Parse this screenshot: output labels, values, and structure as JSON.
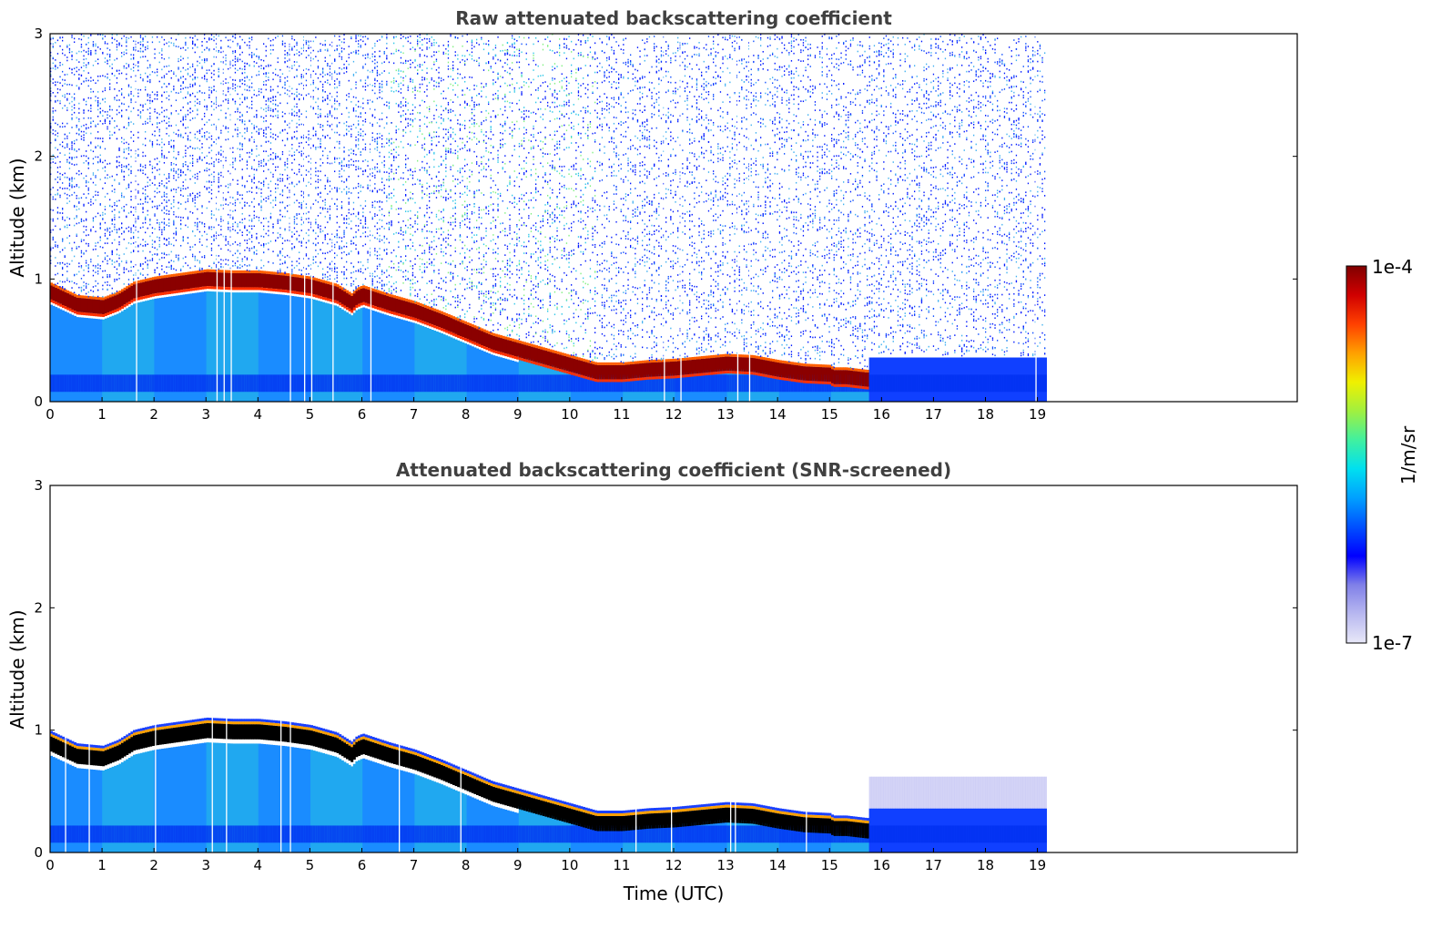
{
  "chart_data": [
    {
      "type": "heatmap",
      "title": "Raw attenuated backscattering coefficient",
      "xlabel": "",
      "ylabel": "Altitude (km)",
      "xlim": [
        0,
        24
      ],
      "ylim": [
        0,
        3
      ],
      "x_ticks": [
        "0",
        "1",
        "2",
        "3",
        "4",
        "5",
        "6",
        "7",
        "8",
        "9",
        "10",
        "11",
        "12",
        "13",
        "14",
        "15",
        "16",
        "17",
        "18",
        "19"
      ],
      "y_ticks": [
        "0",
        "1",
        "2",
        "3"
      ],
      "data_end_hour": 19.2,
      "layer_top_km": {
        "x": [
          0,
          0.5,
          1.0,
          1.3,
          1.6,
          2.0,
          2.5,
          3.0,
          3.5,
          4.0,
          4.5,
          5.0,
          5.5,
          5.8,
          5.85,
          6.0,
          6.5,
          7.0,
          7.5,
          8.0,
          8.5,
          9.0,
          9.5,
          10.0,
          10.5,
          11.0,
          11.5,
          12.0,
          12.5,
          13.0,
          13.5,
          14.0,
          14.5,
          15.0,
          15.05,
          15.3,
          15.5,
          15.7
        ],
        "y": [
          0.97,
          0.87,
          0.85,
          0.9,
          0.98,
          1.02,
          1.05,
          1.08,
          1.07,
          1.07,
          1.05,
          1.02,
          0.96,
          0.88,
          0.92,
          0.95,
          0.88,
          0.82,
          0.74,
          0.65,
          0.56,
          0.5,
          0.44,
          0.38,
          0.32,
          0.32,
          0.34,
          0.35,
          0.37,
          0.39,
          0.38,
          0.34,
          0.31,
          0.3,
          0.28,
          0.28,
          0.27,
          0.26
        ]
      },
      "layer_thickness_km": 0.2,
      "near_surface_enhanced_km": 0.2,
      "notes": "Strong (~1e-4) aerosol/cloud layer descending from ~1.0 km to ~0.3 km through the day; noisy weak signal above layer"
    },
    {
      "type": "heatmap",
      "title": "Attenuated backscattering coefficient (SNR-screened)",
      "xlabel": "Time (UTC)",
      "ylabel": "Altitude (km)",
      "xlim": [
        0,
        24
      ],
      "ylim": [
        0,
        3
      ],
      "x_ticks": [
        "0",
        "1",
        "2",
        "3",
        "4",
        "5",
        "6",
        "7",
        "8",
        "9",
        "10",
        "11",
        "12",
        "13",
        "14",
        "15",
        "16",
        "17",
        "18",
        "19"
      ],
      "y_ticks": [
        "0",
        "1",
        "2",
        "3"
      ],
      "data_end_hour": 19.2,
      "layer_top_km": {
        "x": [
          0,
          0.5,
          1.0,
          1.3,
          1.6,
          2.0,
          2.5,
          3.0,
          3.5,
          4.0,
          4.5,
          5.0,
          5.5,
          5.8,
          5.85,
          6.0,
          6.5,
          7.0,
          7.5,
          8.0,
          8.5,
          9.0,
          9.5,
          10.0,
          10.5,
          11.0,
          11.5,
          12.0,
          12.5,
          13.0,
          13.5,
          14.0,
          14.5,
          15.0,
          15.05,
          15.3,
          15.5,
          15.7
        ],
        "y": [
          0.97,
          0.87,
          0.85,
          0.9,
          0.98,
          1.02,
          1.05,
          1.08,
          1.07,
          1.07,
          1.05,
          1.02,
          0.96,
          0.88,
          0.92,
          0.95,
          0.88,
          0.82,
          0.74,
          0.65,
          0.56,
          0.5,
          0.44,
          0.38,
          0.32,
          0.32,
          0.34,
          0.35,
          0.37,
          0.39,
          0.38,
          0.34,
          0.31,
          0.3,
          0.28,
          0.28,
          0.27,
          0.26
        ]
      },
      "saturated_color": "#000000",
      "notes": "Noise above layer removed; saturated layer core shown in black; faint blue haze 0.3-0.6 km after 15.7 h"
    }
  ],
  "colorbar": {
    "label": "1/m/sr",
    "max_label": "1e-4",
    "min_label": "1e-7",
    "scale": "log",
    "range": [
      1e-07,
      0.0001
    ],
    "colors": [
      "#e8e8f8",
      "#b8b8f0",
      "#8080e8",
      "#0000ff",
      "#0050ff",
      "#00a0ff",
      "#00e0f0",
      "#40f0a0",
      "#a0f040",
      "#f0f000",
      "#ffa000",
      "#ff4000",
      "#d00000",
      "#800000"
    ]
  }
}
